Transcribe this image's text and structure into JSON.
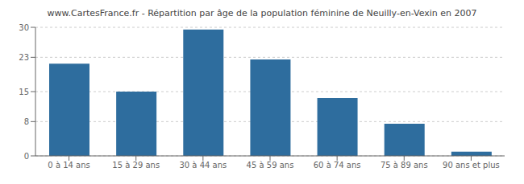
{
  "chart_data": {
    "type": "bar",
    "title": "www.CartesFrance.fr - Répartition par âge de la population féminine de Neuilly-en-Vexin en 2007",
    "categories": [
      "0 à 14 ans",
      "15 à 29 ans",
      "30 à 44 ans",
      "45 à 59 ans",
      "60 à 74 ans",
      "75 à 89 ans",
      "90 ans et plus"
    ],
    "values": [
      21.5,
      15.0,
      29.5,
      22.5,
      13.5,
      7.5,
      1.0
    ],
    "color": "#2e6d9e",
    "ylim": [
      0,
      30
    ],
    "yticks": [
      0,
      8,
      15,
      23,
      30
    ],
    "grid": true
  }
}
